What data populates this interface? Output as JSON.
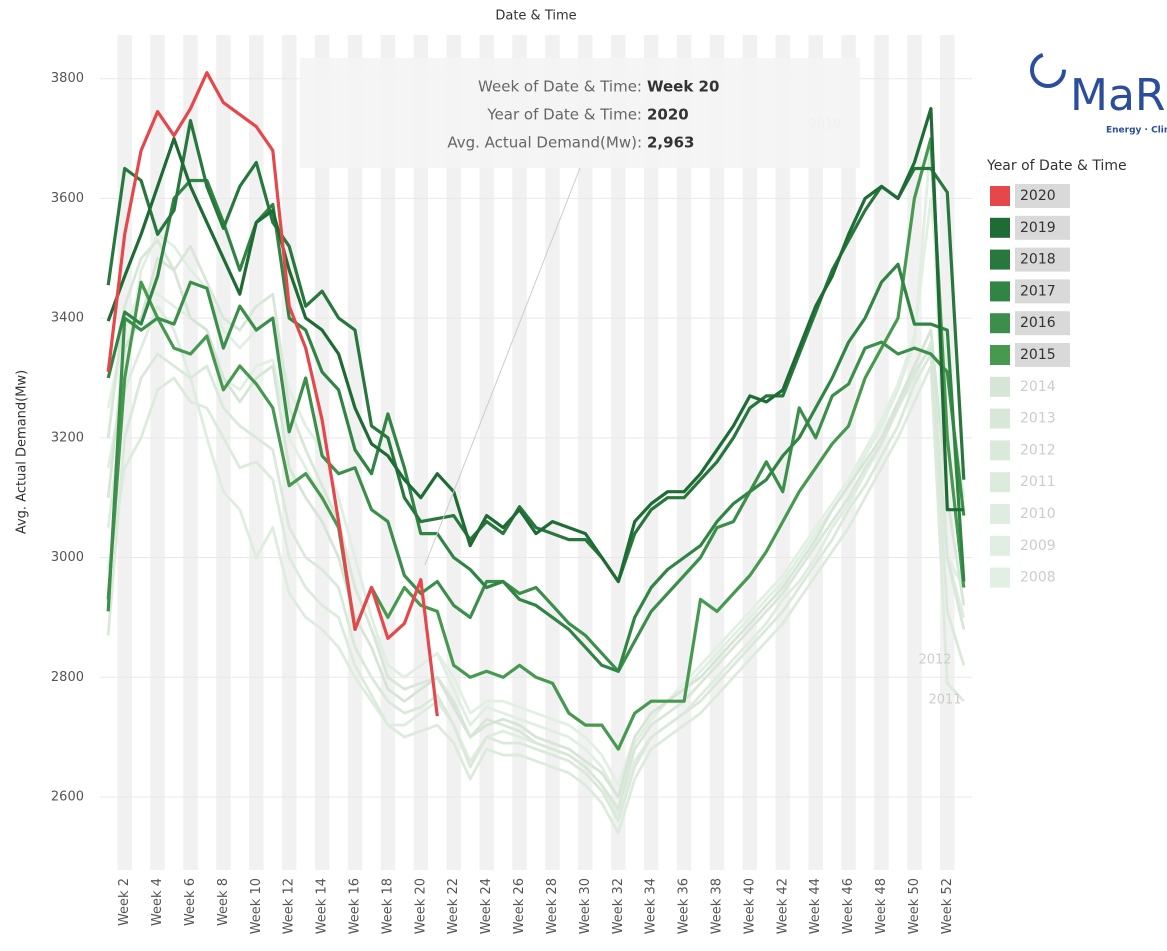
{
  "chart_data": {
    "type": "line",
    "title": "Date & Time",
    "y_label": "Avg. Actual Demand(Mw)",
    "categories": [
      null,
      "Week 2",
      null,
      "Week 4",
      null,
      "Week 6",
      null,
      "Week 8",
      null,
      "Week 10",
      null,
      "Week 12",
      null,
      "Week 14",
      null,
      "Week 16",
      null,
      "Week 18",
      null,
      "Week 20",
      null,
      "Week 22",
      null,
      "Week 24",
      null,
      "Week 26",
      null,
      "Week 28",
      null,
      "Week 30",
      null,
      "Week 32",
      null,
      "Week 34",
      null,
      "Week 36",
      null,
      "Week 38",
      null,
      "Week 40",
      null,
      "Week 42",
      null,
      "Week 44",
      null,
      "Week 46",
      null,
      "Week 48",
      null,
      "Week 50",
      null,
      "Week 52",
      null
    ],
    "ylim": [
      2478,
      3873
    ],
    "yticks": [
      2600,
      2800,
      3000,
      3200,
      3400,
      3600,
      3800
    ],
    "grid": true,
    "legend_title": "Year of Date & Time",
    "series": [
      {
        "name": "2020",
        "color": "#e5474b",
        "values": [
          3310,
          3540,
          3680,
          3745,
          3705,
          3750,
          3810,
          3760,
          3740,
          3720,
          3680,
          3420,
          3350,
          3230,
          3060,
          2880,
          2950,
          2865,
          2890,
          2963,
          2735,
          null,
          null,
          null,
          null,
          null,
          null,
          null,
          null,
          null,
          null,
          null,
          null,
          null,
          null,
          null,
          null,
          null,
          null,
          null,
          null,
          null,
          null,
          null,
          null,
          null,
          null,
          null,
          null,
          null,
          null,
          null,
          null
        ]
      },
      {
        "name": "2019",
        "color": "#1e6b35",
        "values": [
          3395,
          3470,
          3540,
          3620,
          3700,
          3620,
          3560,
          3500,
          3440,
          3560,
          3580,
          3480,
          3400,
          3380,
          3340,
          3250,
          3190,
          3170,
          3130,
          3100,
          3140,
          3110,
          3020,
          3070,
          3050,
          3080,
          3040,
          3060,
          3050,
          3040,
          3000,
          2960,
          3060,
          3090,
          3110,
          3110,
          3140,
          3180,
          3220,
          3270,
          3260,
          3280,
          3350,
          3420,
          3470,
          3540,
          3600,
          3620,
          3600,
          3660,
          3750,
          3080,
          3080
        ]
      },
      {
        "name": "2018",
        "color": "#28773c",
        "values": [
          3455,
          3650,
          3630,
          3540,
          3580,
          3730,
          3620,
          3550,
          3620,
          3660,
          3560,
          3520,
          3420,
          3445,
          3400,
          3380,
          3220,
          3200,
          3100,
          3060,
          3065,
          3070,
          3030,
          3060,
          3040,
          3085,
          3050,
          3040,
          3030,
          3030,
          3000,
          2960,
          3040,
          3080,
          3100,
          3100,
          3130,
          3160,
          3200,
          3250,
          3270,
          3270,
          3340,
          3410,
          3480,
          3530,
          3580,
          3620,
          3600,
          3650,
          3650,
          3610,
          3130
        ]
      },
      {
        "name": "2017",
        "color": "#318544",
        "values": [
          3300,
          3410,
          3390,
          3470,
          3600,
          3630,
          3630,
          3560,
          3480,
          3560,
          3590,
          3400,
          3380,
          3310,
          3280,
          3180,
          3140,
          3240,
          3150,
          3040,
          3040,
          3000,
          2980,
          2950,
          2960,
          2930,
          2920,
          2900,
          2880,
          2850,
          2820,
          2810,
          2900,
          2950,
          2980,
          3000,
          3020,
          3060,
          3090,
          3110,
          3130,
          3170,
          3200,
          3250,
          3300,
          3360,
          3400,
          3460,
          3490,
          3390,
          3390,
          3380,
          2960
        ]
      },
      {
        "name": "2016",
        "color": "#3b8f4a",
        "values": [
          2910,
          3400,
          3380,
          3400,
          3390,
          3460,
          3450,
          3350,
          3420,
          3380,
          3400,
          3210,
          3300,
          3170,
          3140,
          3150,
          3080,
          3060,
          2970,
          2940,
          2960,
          2920,
          2900,
          2960,
          2960,
          2940,
          2950,
          2920,
          2890,
          2870,
          2840,
          2810,
          2860,
          2910,
          2940,
          2970,
          3000,
          3050,
          3060,
          3110,
          3160,
          3110,
          3250,
          3200,
          3270,
          3290,
          3350,
          3360,
          3340,
          3350,
          3340,
          3310,
          3070
        ]
      },
      {
        "name": "2015",
        "color": "#47994f",
        "values": [
          2930,
          3300,
          3460,
          3400,
          3350,
          3340,
          3370,
          3280,
          3320,
          3290,
          3250,
          3120,
          3140,
          3100,
          3050,
          2880,
          2950,
          2900,
          2950,
          2920,
          2910,
          2820,
          2800,
          2810,
          2800,
          2820,
          2800,
          2790,
          2740,
          2720,
          2720,
          2680,
          2740,
          2760,
          2760,
          2760,
          2930,
          2910,
          2940,
          2970,
          3010,
          3060,
          3110,
          3150,
          3190,
          3220,
          3300,
          3350,
          3400,
          3600,
          3700,
          3200,
          2950
        ]
      },
      {
        "name": "2014",
        "color": "#d6e5d6",
        "values": [
          3100,
          3350,
          3400,
          3500,
          3480,
          3400,
          3380,
          3300,
          3260,
          3300,
          3320,
          3150,
          3100,
          3060,
          3000,
          2900,
          2850,
          2780,
          2760,
          2780,
          2800,
          2750,
          2700,
          2720,
          2730,
          2720,
          2700,
          2690,
          2680,
          2660,
          2640,
          2600,
          2700,
          2740,
          2760,
          2780,
          2800,
          2830,
          2860,
          2890,
          2920,
          2950,
          2990,
          3030,
          3080,
          3120,
          3160,
          3200,
          3260,
          3320,
          3380,
          3100,
          2920
        ]
      },
      {
        "name": "2013",
        "color": "#d8e7d8",
        "values": [
          3200,
          3420,
          3500,
          3530,
          3480,
          3520,
          3460,
          3400,
          3380,
          3420,
          3440,
          3250,
          3180,
          3120,
          3060,
          2950,
          2880,
          2800,
          2780,
          2790,
          2800,
          2760,
          2700,
          2730,
          2720,
          2710,
          2690,
          2680,
          2670,
          2650,
          2620,
          2580,
          2680,
          2720,
          2740,
          2760,
          2790,
          2820,
          2850,
          2880,
          2910,
          2940,
          2980,
          3020,
          3060,
          3100,
          3150,
          3190,
          3250,
          3310,
          3350,
          3000,
          2880
        ]
      },
      {
        "name": "2012",
        "color": "#dae9da",
        "values": [
          2870,
          3200,
          3300,
          3340,
          3320,
          3300,
          3320,
          3250,
          3220,
          3200,
          3180,
          3050,
          3000,
          2980,
          2950,
          2850,
          2800,
          2760,
          2740,
          2750,
          2770,
          2720,
          2650,
          2700,
          2690,
          2690,
          2680,
          2670,
          2660,
          2640,
          2610,
          2560,
          2650,
          2700,
          2720,
          2740,
          2760,
          2790,
          2820,
          2850,
          2880,
          2910,
          2950,
          2990,
          3030,
          3080,
          3120,
          3170,
          3220,
          3290,
          3340,
          2910,
          2820
        ]
      },
      {
        "name": "2011",
        "color": "#dcebdc",
        "values": [
          2980,
          3150,
          3200,
          3280,
          3300,
          3260,
          3250,
          3200,
          3150,
          3160,
          3130,
          3000,
          2950,
          2920,
          2900,
          2820,
          2770,
          2720,
          2700,
          2710,
          2720,
          2690,
          2630,
          2680,
          2670,
          2670,
          2660,
          2650,
          2640,
          2620,
          2590,
          2540,
          2630,
          2680,
          2700,
          2720,
          2740,
          2770,
          2800,
          2830,
          2860,
          2890,
          2930,
          2970,
          3010,
          3050,
          3100,
          3150,
          3200,
          3260,
          3320,
          2790,
          2760
        ]
      },
      {
        "name": "2010",
        "color": "#deeddf",
        "values": [
          3050,
          3280,
          3350,
          3420,
          3380,
          3300,
          3200,
          3110,
          3080,
          3000,
          3050,
          2940,
          2900,
          2880,
          2850,
          2800,
          2760,
          2720,
          2720,
          2740,
          2760,
          2720,
          2660,
          2700,
          2710,
          2700,
          2690,
          2680,
          2670,
          2650,
          2620,
          2570,
          2660,
          2700,
          2720,
          2740,
          2770,
          2800,
          2830,
          2860,
          2890,
          2930,
          2960,
          3000,
          3050,
          3090,
          3140,
          3190,
          3250,
          3300,
          3360,
          3000,
          2900
        ]
      },
      {
        "name": "2009",
        "color": "#e0efe1",
        "values": [
          3150,
          3300,
          3480,
          3540,
          3520,
          3480,
          3450,
          3380,
          3350,
          3380,
          3400,
          3280,
          3220,
          3180,
          3100,
          3000,
          2900,
          2820,
          2800,
          2820,
          2840,
          2780,
          2720,
          2750,
          2740,
          2730,
          2720,
          2710,
          2700,
          2680,
          2650,
          2600,
          2690,
          2730,
          2760,
          2780,
          2810,
          2840,
          2870,
          2900,
          2930,
          2960,
          3000,
          3040,
          3080,
          3120,
          3170,
          3220,
          3280,
          3360,
          3700,
          3000,
          2950
        ]
      },
      {
        "name": "2008",
        "color": "#e2f0e3",
        "values": [
          3250,
          3380,
          3450,
          3440,
          3420,
          3400,
          3380,
          3300,
          3280,
          3320,
          3330,
          3200,
          3150,
          3100,
          3050,
          2950,
          2880,
          2820,
          2800,
          2820,
          2840,
          2800,
          2740,
          2760,
          2760,
          2750,
          2740,
          2730,
          2720,
          2700,
          2670,
          2620,
          2700,
          2740,
          2760,
          2790,
          2820,
          2850,
          2880,
          2910,
          2940,
          2970,
          3010,
          3050,
          3090,
          3130,
          3180,
          3230,
          3290,
          3370,
          3600,
          3300,
          3100
        ]
      }
    ],
    "line_labels": [
      "2019",
      "2012",
      "2011"
    ],
    "tooltip": [
      {
        "label": "Week of Date & Time:",
        "value": "Week 20"
      },
      {
        "label": "Year of Date & Time:",
        "value": "2020"
      },
      {
        "label": "Avg. Actual Demand(Mw):",
        "value": "2,963"
      }
    ],
    "logo": {
      "text": "MaR",
      "tagline": "Energy · Climat"
    }
  }
}
